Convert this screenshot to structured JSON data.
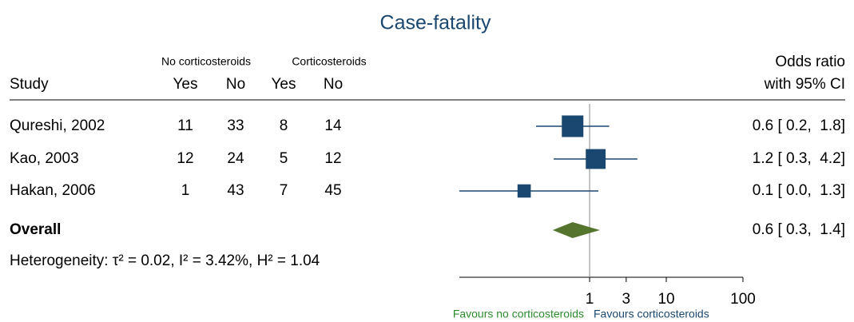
{
  "chart_data": {
    "type": "forest",
    "title": "Case-fatality",
    "xscale": "log",
    "xlim": [
      0.02,
      100
    ],
    "xticks": [
      1,
      3,
      10,
      100
    ],
    "header": {
      "group1": "No corticosteroids",
      "group2": "Corticosteroids",
      "study": "Study",
      "yes": "Yes",
      "no": "No",
      "effect": "Odds ratio",
      "ci": "with 95% CI"
    },
    "studies": [
      {
        "name": "Qureshi, 2002",
        "counts": [
          11,
          33,
          8,
          14
        ],
        "estimate": 0.6,
        "lower": 0.2,
        "upper": 1.8,
        "weight": 45,
        "value_label": "0.6 [ 0.2,  1.8]"
      },
      {
        "name": "Kao, 2003",
        "counts": [
          12,
          24,
          5,
          12
        ],
        "estimate": 1.2,
        "lower": 0.34,
        "upper": 4.2,
        "weight": 38,
        "value_label": "1.2 [ 0.3,  4.2]"
      },
      {
        "name": "Hakan, 2006",
        "counts": [
          1,
          43,
          7,
          45
        ],
        "estimate": 0.14,
        "lower": 0.02,
        "upper": 1.3,
        "weight": 17,
        "value_label": "0.1 [ 0.0,  1.3]"
      }
    ],
    "overall": {
      "name": "Overall",
      "estimate": 0.6,
      "lower": 0.33,
      "upper": 1.36,
      "value_label": "0.6 [ 0.3,  1.4]"
    },
    "heterogeneity": "Heterogeneity: τ² = 0.02, I² = 3.42%, H² = 1.04",
    "favours_left": "Favours no corticosteroids",
    "favours_right": "Favours corticosteroids",
    "colors": {
      "title": "#1a476f",
      "marker": "#1a476f",
      "overall": "#55752f",
      "favours_left": "#2e8b2e",
      "favours_right": "#1a476f"
    }
  }
}
